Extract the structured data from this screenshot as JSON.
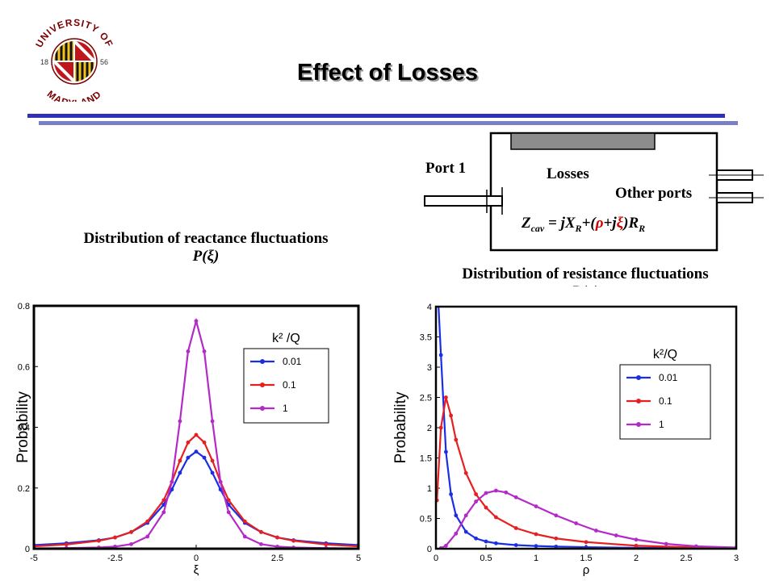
{
  "title": "Effect of Losses",
  "logo": {
    "top_text": "UNIVERSITY OF",
    "bottom_text": "MARYLAND",
    "year_left": "18",
    "year_right": "56"
  },
  "diagram": {
    "port_label": "Port 1",
    "losses_label": "Losses",
    "other_ports_label": "Other ports",
    "equation": {
      "z": "Z",
      "z_sub": "cav",
      "eq": " = jX",
      "x_sub": "R",
      "plus": "+(",
      "rho": "ρ",
      "plusj": "+j",
      "xi": "ξ",
      "close": ")R",
      "r_sub": "R"
    }
  },
  "captions": {
    "left_line1": "Distribution of reactance fluctuations",
    "left_line2": "P(ξ)",
    "right_line1": "Distribution of resistance fluctuations",
    "right_line2": "P(ρ)"
  },
  "colors": {
    "blue": "#1a2ee6",
    "red": "#e62020",
    "magenta": "#b42ac8"
  },
  "chart_data": [
    {
      "type": "line",
      "xlabel": "ξ",
      "ylabel": "Probability",
      "xlim": [
        -5,
        5
      ],
      "ylim": [
        0,
        0.8
      ],
      "xticks": [
        "-5",
        "-2.5",
        "0",
        "2.5",
        "5"
      ],
      "yticks": [
        "0",
        "0.2",
        "0.4",
        "0.6",
        "0.8"
      ],
      "legend": {
        "title": "k² /Q",
        "placement": "top-right"
      },
      "series": [
        {
          "name": "0.01",
          "color": "#1a2ee6",
          "x": [
            -5,
            -4,
            -3,
            -2.5,
            -2,
            -1.5,
            -1,
            -0.75,
            -0.5,
            -0.25,
            0,
            0.25,
            0.5,
            0.75,
            1,
            1.5,
            2,
            2.5,
            3,
            4,
            5
          ],
          "y": [
            0.012,
            0.018,
            0.028,
            0.037,
            0.055,
            0.085,
            0.145,
            0.195,
            0.25,
            0.3,
            0.32,
            0.3,
            0.25,
            0.195,
            0.145,
            0.085,
            0.055,
            0.037,
            0.028,
            0.018,
            0.012
          ]
        },
        {
          "name": "0.1",
          "color": "#e62020",
          "x": [
            -5,
            -4,
            -3,
            -2.5,
            -2,
            -1.5,
            -1,
            -0.75,
            -0.5,
            -0.25,
            0,
            0.25,
            0.5,
            0.75,
            1,
            1.5,
            2,
            2.5,
            3,
            4,
            5
          ],
          "y": [
            0.008,
            0.014,
            0.026,
            0.037,
            0.055,
            0.09,
            0.16,
            0.22,
            0.29,
            0.35,
            0.375,
            0.35,
            0.29,
            0.22,
            0.16,
            0.09,
            0.055,
            0.037,
            0.026,
            0.014,
            0.008
          ]
        },
        {
          "name": "1",
          "color": "#b42ac8",
          "x": [
            -5,
            -4,
            -3,
            -2.5,
            -2,
            -1.5,
            -1,
            -0.75,
            -0.5,
            -0.25,
            0,
            0.25,
            0.5,
            0.75,
            1,
            1.5,
            2,
            2.5,
            3,
            4,
            5
          ],
          "y": [
            0.001,
            0.002,
            0.004,
            0.007,
            0.015,
            0.04,
            0.12,
            0.22,
            0.42,
            0.65,
            0.75,
            0.65,
            0.42,
            0.22,
            0.12,
            0.04,
            0.015,
            0.007,
            0.004,
            0.002,
            0.001
          ]
        }
      ]
    },
    {
      "type": "line",
      "xlabel": "ρ",
      "ylabel": "Probability",
      "xlim": [
        0,
        3
      ],
      "ylim": [
        0,
        4
      ],
      "xticks": [
        "0",
        "0.5",
        "1",
        "1.5",
        "2",
        "2.5",
        "3"
      ],
      "yticks": [
        "0",
        "0.5",
        "1",
        "1.5",
        "2",
        "2.5",
        "3",
        "3.5",
        "4"
      ],
      "legend": {
        "title": "k²/Q",
        "placement": "top-right"
      },
      "series": [
        {
          "name": "0.01",
          "color": "#1a2ee6",
          "x": [
            0.02,
            0.05,
            0.1,
            0.15,
            0.2,
            0.3,
            0.4,
            0.5,
            0.6,
            0.8,
            1,
            1.2,
            1.5,
            2,
            2.5,
            3
          ],
          "y": [
            4.2,
            3.2,
            1.6,
            0.9,
            0.55,
            0.28,
            0.17,
            0.12,
            0.09,
            0.06,
            0.045,
            0.035,
            0.025,
            0.015,
            0.01,
            0.005
          ]
        },
        {
          "name": "0.1",
          "color": "#e62020",
          "x": [
            0.01,
            0.05,
            0.1,
            0.15,
            0.2,
            0.3,
            0.4,
            0.5,
            0.6,
            0.8,
            1,
            1.2,
            1.5,
            2,
            2.5,
            3
          ],
          "y": [
            0.8,
            2.0,
            2.5,
            2.2,
            1.8,
            1.25,
            0.9,
            0.68,
            0.52,
            0.34,
            0.24,
            0.17,
            0.11,
            0.05,
            0.025,
            0.012
          ]
        },
        {
          "name": "1",
          "color": "#b42ac8",
          "x": [
            0.05,
            0.1,
            0.2,
            0.3,
            0.4,
            0.5,
            0.6,
            0.7,
            0.8,
            1,
            1.2,
            1.4,
            1.6,
            1.8,
            2,
            2.3,
            2.6,
            3
          ],
          "y": [
            0.01,
            0.05,
            0.25,
            0.55,
            0.78,
            0.92,
            0.96,
            0.93,
            0.85,
            0.7,
            0.55,
            0.42,
            0.3,
            0.22,
            0.15,
            0.08,
            0.04,
            0.02
          ]
        }
      ]
    }
  ]
}
